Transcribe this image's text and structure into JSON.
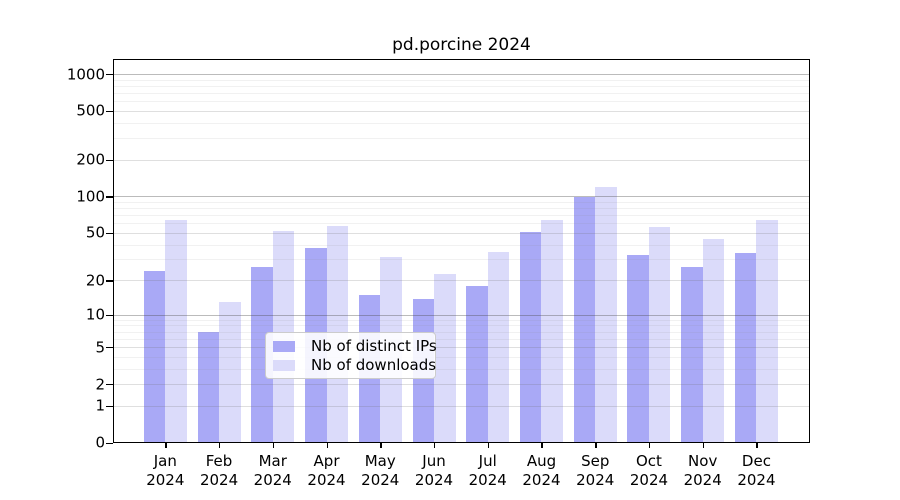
{
  "chart_data": {
    "type": "bar",
    "title": "pd.porcine 2024",
    "x_year": "2024",
    "categories": [
      "Jan",
      "Feb",
      "Mar",
      "Apr",
      "May",
      "Jun",
      "Jul",
      "Aug",
      "Sep",
      "Oct",
      "Nov",
      "Dec"
    ],
    "series": [
      {
        "name": "Nb of distinct IPs",
        "color": "#a9a9f6",
        "values": [
          24,
          7,
          26,
          38,
          15,
          14,
          18,
          51,
          99,
          33,
          26,
          34
        ]
      },
      {
        "name": "Nb of downloads",
        "color": "#dbdbfa",
        "values": [
          65,
          13,
          52,
          58,
          32,
          23,
          35,
          65,
          121,
          57,
          45,
          64
        ]
      }
    ],
    "y_axis": {
      "scale": "log10(1+y)",
      "ticks": [
        1000,
        500,
        200,
        100,
        50,
        20,
        10,
        5,
        2,
        1,
        0
      ],
      "emphasized_gridlines": [
        10,
        100,
        1000
      ],
      "minor_gridlines": [
        3,
        4,
        6,
        7,
        8,
        9,
        30,
        40,
        60,
        70,
        80,
        90,
        300,
        400,
        600,
        700,
        800,
        900
      ],
      "ylim": [
        0,
        1320
      ]
    },
    "legend": {
      "entries": [
        "Nb of distinct IPs",
        "Nb of downloads"
      ],
      "position": "bottom-center"
    },
    "grid": true
  }
}
